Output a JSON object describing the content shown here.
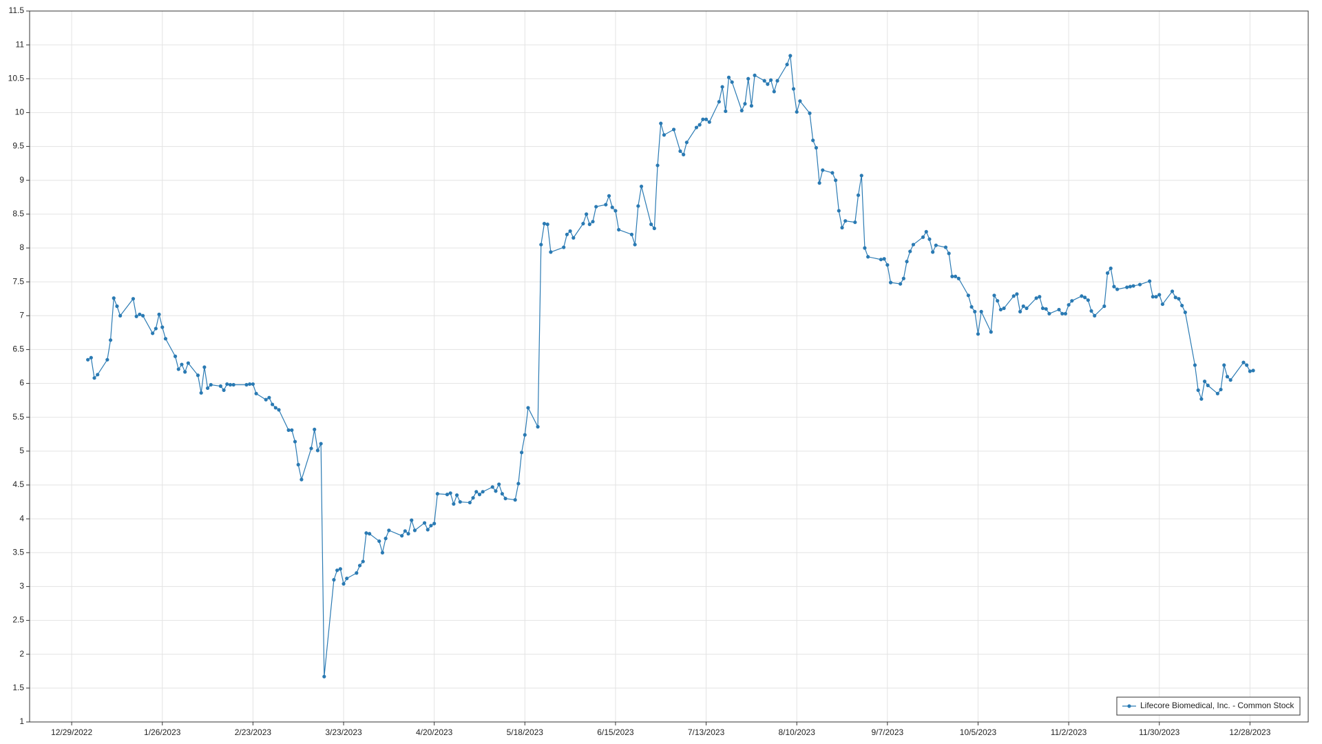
{
  "chart_data": {
    "type": "line",
    "x": [
      "1/3/2023",
      "1/4/2023",
      "1/5/2023",
      "1/6/2023",
      "1/9/2023",
      "1/10/2023",
      "1/11/2023",
      "1/12/2023",
      "1/13/2023",
      "1/17/2023",
      "1/18/2023",
      "1/19/2023",
      "1/20/2023",
      "1/23/2023",
      "1/24/2023",
      "1/25/2023",
      "1/26/2023",
      "1/27/2023",
      "1/30/2023",
      "1/31/2023",
      "2/1/2023",
      "2/2/2023",
      "2/3/2023",
      "2/6/2023",
      "2/7/2023",
      "2/8/2023",
      "2/9/2023",
      "2/10/2023",
      "2/13/2023",
      "2/14/2023",
      "2/15/2023",
      "2/16/2023",
      "2/17/2023",
      "2/21/2023",
      "2/22/2023",
      "2/23/2023",
      "2/24/2023",
      "2/27/2023",
      "2/28/2023",
      "3/1/2023",
      "3/2/2023",
      "3/3/2023",
      "3/6/2023",
      "3/7/2023",
      "3/8/2023",
      "3/9/2023",
      "3/10/2023",
      "3/13/2023",
      "3/14/2023",
      "3/15/2023",
      "3/16/2023",
      "3/17/2023",
      "3/20/2023",
      "3/21/2023",
      "3/22/2023",
      "3/23/2023",
      "3/24/2023",
      "3/27/2023",
      "3/28/2023",
      "3/29/2023",
      "3/30/2023",
      "3/31/2023",
      "4/3/2023",
      "4/4/2023",
      "4/5/2023",
      "4/6/2023",
      "4/10/2023",
      "4/11/2023",
      "4/12/2023",
      "4/13/2023",
      "4/14/2023",
      "4/17/2023",
      "4/18/2023",
      "4/19/2023",
      "4/20/2023",
      "4/21/2023",
      "4/24/2023",
      "4/25/2023",
      "4/26/2023",
      "4/27/2023",
      "4/28/2023",
      "5/1/2023",
      "5/2/2023",
      "5/3/2023",
      "5/4/2023",
      "5/5/2023",
      "5/8/2023",
      "5/9/2023",
      "5/10/2023",
      "5/11/2023",
      "5/12/2023",
      "5/15/2023",
      "5/16/2023",
      "5/17/2023",
      "5/18/2023",
      "5/19/2023",
      "5/22/2023",
      "5/23/2023",
      "5/24/2023",
      "5/25/2023",
      "5/26/2023",
      "5/30/2023",
      "5/31/2023",
      "6/1/2023",
      "6/2/2023",
      "6/5/2023",
      "6/6/2023",
      "6/7/2023",
      "6/8/2023",
      "6/9/2023",
      "6/12/2023",
      "6/13/2023",
      "6/14/2023",
      "6/15/2023",
      "6/16/2023",
      "6/20/2023",
      "6/21/2023",
      "6/22/2023",
      "6/23/2023",
      "6/26/2023",
      "6/27/2023",
      "6/28/2023",
      "6/29/2023",
      "6/30/2023",
      "7/3/2023",
      "7/5/2023",
      "7/6/2023",
      "7/7/2023",
      "7/10/2023",
      "7/11/2023",
      "7/12/2023",
      "7/13/2023",
      "7/14/2023",
      "7/17/2023",
      "7/18/2023",
      "7/19/2023",
      "7/20/2023",
      "7/21/2023",
      "7/24/2023",
      "7/25/2023",
      "7/26/2023",
      "7/27/2023",
      "7/28/2023",
      "7/31/2023",
      "8/1/2023",
      "8/2/2023",
      "8/3/2023",
      "8/4/2023",
      "8/7/2023",
      "8/8/2023",
      "8/9/2023",
      "8/10/2023",
      "8/11/2023",
      "8/14/2023",
      "8/15/2023",
      "8/16/2023",
      "8/17/2023",
      "8/18/2023",
      "8/21/2023",
      "8/22/2023",
      "8/23/2023",
      "8/24/2023",
      "8/25/2023",
      "8/28/2023",
      "8/29/2023",
      "8/30/2023",
      "8/31/2023",
      "9/1/2023",
      "9/5/2023",
      "9/6/2023",
      "9/7/2023",
      "9/8/2023",
      "9/11/2023",
      "9/12/2023",
      "9/13/2023",
      "9/14/2023",
      "9/15/2023",
      "9/18/2023",
      "9/19/2023",
      "9/20/2023",
      "9/21/2023",
      "9/22/2023",
      "9/25/2023",
      "9/26/2023",
      "9/27/2023",
      "9/28/2023",
      "9/29/2023",
      "10/2/2023",
      "10/3/2023",
      "10/4/2023",
      "10/5/2023",
      "10/6/2023",
      "10/9/2023",
      "10/10/2023",
      "10/11/2023",
      "10/12/2023",
      "10/13/2023",
      "10/16/2023",
      "10/17/2023",
      "10/18/2023",
      "10/19/2023",
      "10/20/2023",
      "10/23/2023",
      "10/24/2023",
      "10/25/2023",
      "10/26/2023",
      "10/27/2023",
      "10/30/2023",
      "10/31/2023",
      "11/1/2023",
      "11/2/2023",
      "11/3/2023",
      "11/6/2023",
      "11/7/2023",
      "11/8/2023",
      "11/9/2023",
      "11/10/2023",
      "11/13/2023",
      "11/14/2023",
      "11/15/2023",
      "11/16/2023",
      "11/17/2023",
      "11/20/2023",
      "11/21/2023",
      "11/22/2023",
      "11/24/2023",
      "11/27/2023",
      "11/28/2023",
      "11/29/2023",
      "11/30/2023",
      "12/1/2023",
      "12/4/2023",
      "12/5/2023",
      "12/6/2023",
      "12/7/2023",
      "12/8/2023",
      "12/11/2023",
      "12/12/2023",
      "12/13/2023",
      "12/14/2023",
      "12/15/2023",
      "12/18/2023",
      "12/19/2023",
      "12/20/2023",
      "12/21/2023",
      "12/22/2023",
      "12/26/2023",
      "12/27/2023",
      "12/28/2023",
      "12/29/2023"
    ],
    "series": [
      {
        "name": "Lifecore Biomedical, Inc. - Common Stock",
        "color": "#2a7ab3",
        "values": [
          6.35,
          6.38,
          6.08,
          6.13,
          6.35,
          6.64,
          7.26,
          7.14,
          7.0,
          7.25,
          6.99,
          7.02,
          7.0,
          6.74,
          6.81,
          7.02,
          6.83,
          6.66,
          6.4,
          6.21,
          6.28,
          6.17,
          6.3,
          6.12,
          5.86,
          6.24,
          5.93,
          5.98,
          5.96,
          5.9,
          5.99,
          5.98,
          5.98,
          5.98,
          5.99,
          5.99,
          5.85,
          5.76,
          5.79,
          5.69,
          5.64,
          5.61,
          5.31,
          5.31,
          5.14,
          4.8,
          4.58,
          5.04,
          5.32,
          5.01,
          5.11,
          1.67,
          3.1,
          3.24,
          3.26,
          3.04,
          3.12,
          3.2,
          3.31,
          3.37,
          3.79,
          3.78,
          3.67,
          3.5,
          3.71,
          3.83,
          3.75,
          3.82,
          3.78,
          3.98,
          3.83,
          3.94,
          3.84,
          3.9,
          3.93,
          4.37,
          4.36,
          4.38,
          4.22,
          4.35,
          4.25,
          4.24,
          4.31,
          4.4,
          4.36,
          4.4,
          4.47,
          4.41,
          4.51,
          4.37,
          4.3,
          4.28,
          4.52,
          4.98,
          5.24,
          5.64,
          5.36,
          8.05,
          8.36,
          8.35,
          7.94,
          8.01,
          8.2,
          8.25,
          8.15,
          8.36,
          8.5,
          8.35,
          8.39,
          8.61,
          8.64,
          8.77,
          8.6,
          8.55,
          8.27,
          8.2,
          8.05,
          8.62,
          8.91,
          8.35,
          8.29,
          9.22,
          9.84,
          9.67,
          9.75,
          9.43,
          9.38,
          9.56,
          9.78,
          9.82,
          9.9,
          9.9,
          9.86,
          10.16,
          10.38,
          10.02,
          10.52,
          10.45,
          10.03,
          10.13,
          10.5,
          10.1,
          10.55,
          10.47,
          10.42,
          10.48,
          10.31,
          10.47,
          10.71,
          10.84,
          10.35,
          10.01,
          10.17,
          9.99,
          9.59,
          9.48,
          8.96,
          9.15,
          9.11,
          9.0,
          8.55,
          8.3,
          8.4,
          8.38,
          8.78,
          9.07,
          8.0,
          7.87,
          7.83,
          7.84,
          7.75,
          7.49,
          7.47,
          7.55,
          7.8,
          7.95,
          8.05,
          8.16,
          8.24,
          8.13,
          7.94,
          8.04,
          8.01,
          7.92,
          7.58,
          7.58,
          7.55,
          7.3,
          7.13,
          7.06,
          6.73,
          7.06,
          6.76,
          7.3,
          7.22,
          7.09,
          7.11,
          7.29,
          7.32,
          7.06,
          7.14,
          7.11,
          7.26,
          7.28,
          7.11,
          7.1,
          7.03,
          7.09,
          7.03,
          7.03,
          7.16,
          7.22,
          7.29,
          7.27,
          7.23,
          7.07,
          7.0,
          7.14,
          7.63,
          7.7,
          7.43,
          7.39,
          7.42,
          7.43,
          7.44,
          7.46,
          7.51,
          7.28,
          7.28,
          7.31,
          7.17,
          7.36,
          7.27,
          7.25,
          7.15,
          7.05,
          6.27,
          5.9,
          5.77,
          6.03,
          5.97,
          5.85,
          5.91,
          6.27,
          6.1,
          6.05,
          6.31,
          6.27,
          6.18,
          6.19
        ]
      }
    ],
    "xlim": [
      "12/16/2022",
      "1/15/2024"
    ],
    "xticks": [
      "12/29/2022",
      "1/26/2023",
      "2/23/2023",
      "3/23/2023",
      "4/20/2023",
      "5/18/2023",
      "6/15/2023",
      "7/13/2023",
      "8/10/2023",
      "9/7/2023",
      "10/5/2023",
      "11/2/2023",
      "11/30/2023",
      "12/28/2023"
    ],
    "ylim": [
      1,
      11.5
    ],
    "yticks": [
      1,
      1.5,
      2,
      2.5,
      3,
      3.5,
      4,
      4.5,
      5,
      5.5,
      6,
      6.5,
      7,
      7.5,
      8,
      8.5,
      9,
      9.5,
      10,
      10.5,
      11,
      11.5
    ],
    "grid": true,
    "legend": "lower right"
  }
}
